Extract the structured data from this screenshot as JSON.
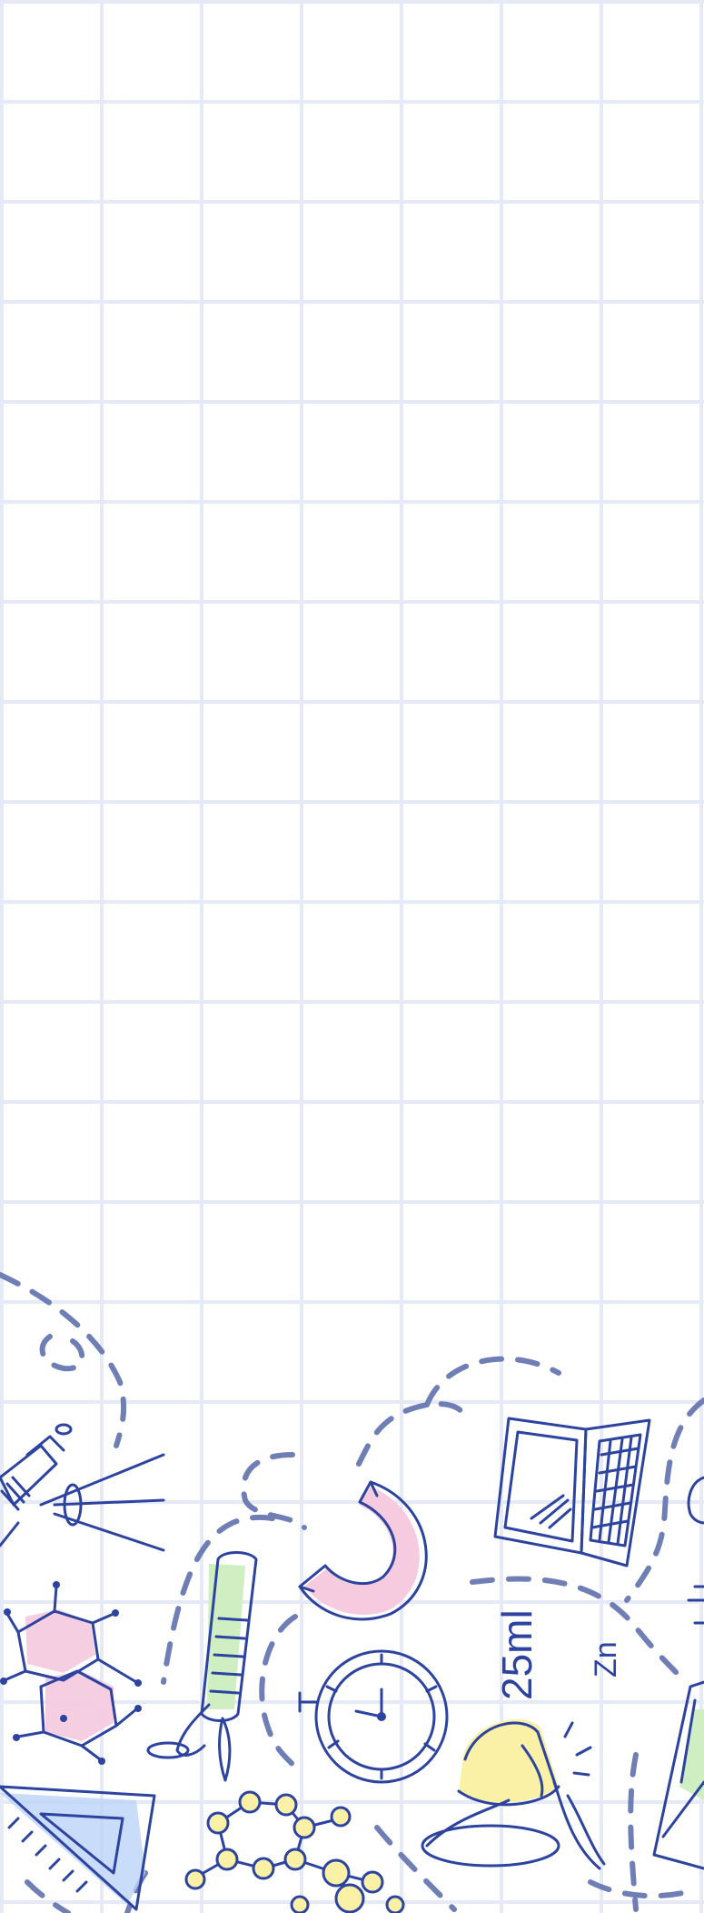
{
  "background": {
    "paper_color": "#ffffff",
    "grid_color": "#e6e9f6"
  },
  "doodles": {
    "ink_color": "#2d43a0",
    "dash_color": "#6f7fb6",
    "accents": {
      "pink": "#f6cbe0",
      "green": "#cfeec1",
      "blue": "#bcd3f7",
      "yellow": "#fbf1a6"
    },
    "volume_label": "25ml",
    "element_label": "Zn"
  }
}
